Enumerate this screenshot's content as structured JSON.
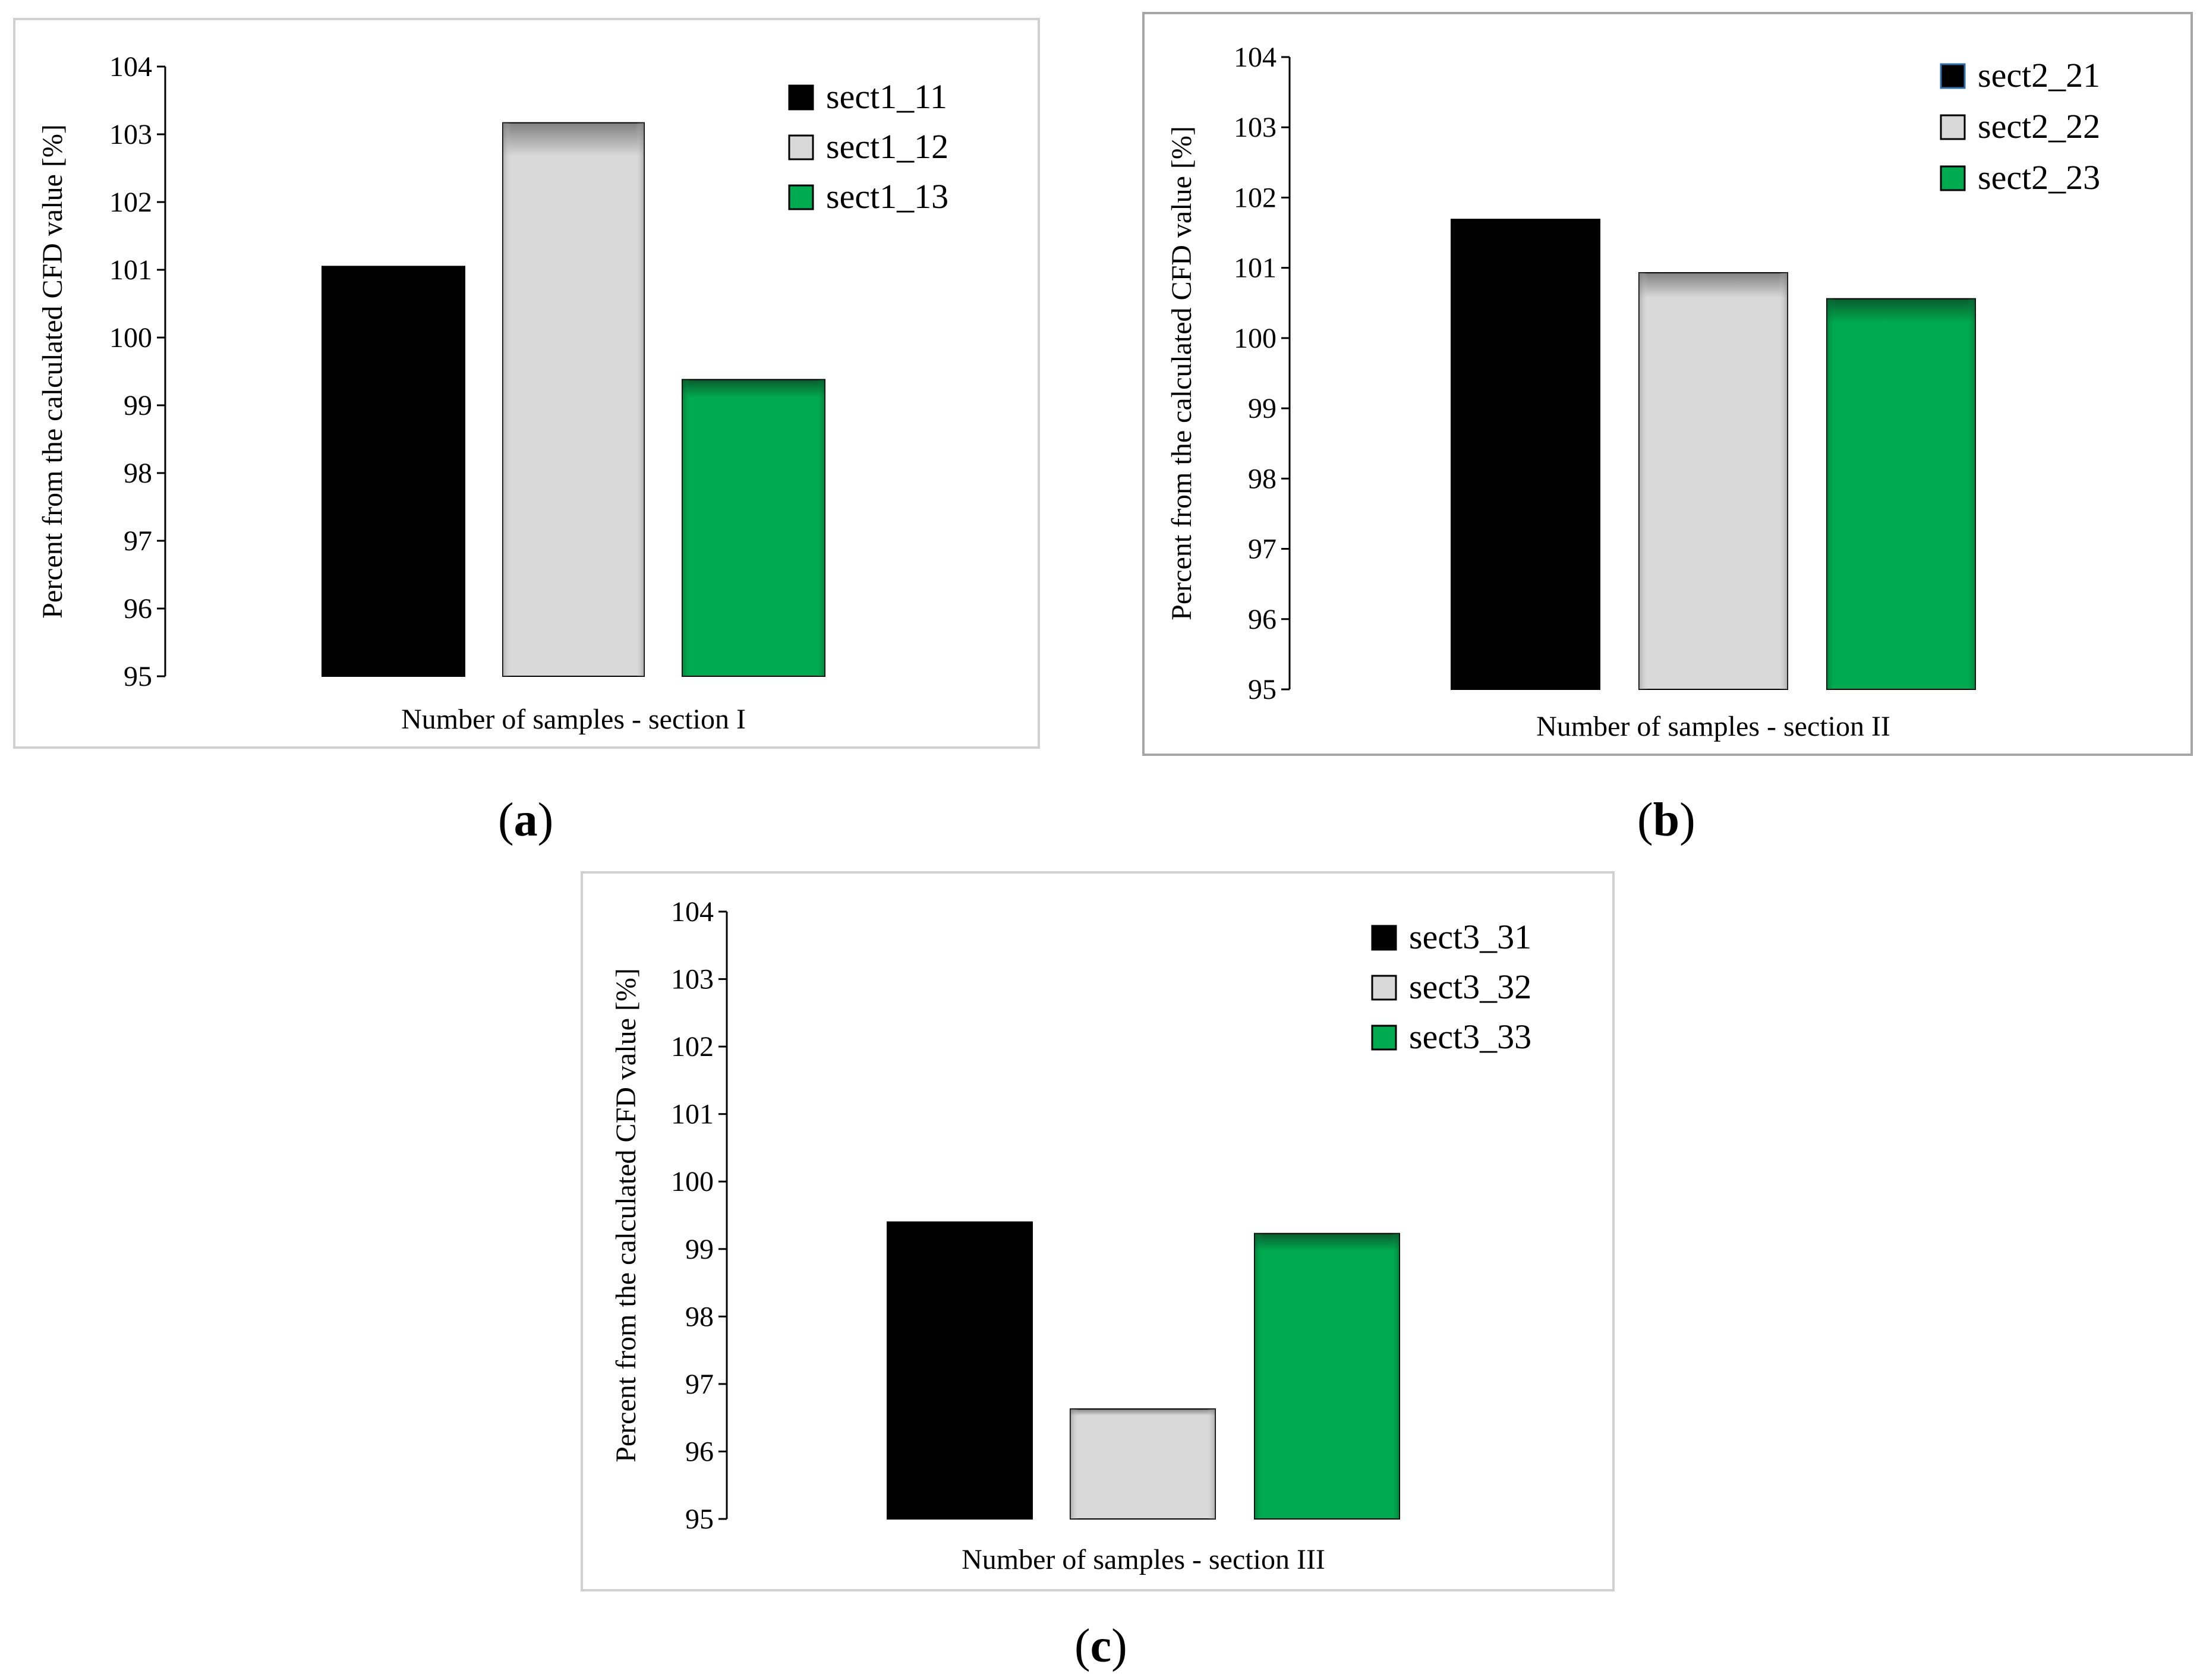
{
  "chart_data": [
    {
      "type": "bar",
      "panel": "a",
      "xlabel": "Number of  samples - section I",
      "ylabel": "Percent from the calculated CFD value [%]",
      "ylim": [
        95,
        104
      ],
      "yticks": [
        95,
        96,
        97,
        98,
        99,
        100,
        101,
        102,
        103,
        104
      ],
      "series": [
        {
          "name": "sect1_11",
          "value": 101.05,
          "color": "#000000"
        },
        {
          "name": "sect1_12",
          "value": 103.17,
          "color": "#d9d9d9"
        },
        {
          "name": "sect1_13",
          "value": 99.38,
          "color": "#00aa4f"
        }
      ]
    },
    {
      "type": "bar",
      "panel": "b",
      "xlabel": "Number of  samples - section II",
      "ylabel": "Percent from the calculated CFD value [%]",
      "ylim": [
        95,
        104
      ],
      "yticks": [
        95,
        96,
        97,
        98,
        99,
        100,
        101,
        102,
        103,
        104
      ],
      "series": [
        {
          "name": "sect2_21",
          "value": 101.69,
          "color": "#000000"
        },
        {
          "name": "sect2_22",
          "value": 100.93,
          "color": "#d9d9d9"
        },
        {
          "name": "sect2_23",
          "value": 100.56,
          "color": "#00aa4f"
        }
      ]
    },
    {
      "type": "bar",
      "panel": "c",
      "xlabel": "Number of  samples - section III",
      "ylabel": "Percent from the calculated CFD value [%]",
      "ylim": [
        95,
        104
      ],
      "yticks": [
        95,
        96,
        97,
        98,
        99,
        100,
        101,
        102,
        103,
        104
      ],
      "series": [
        {
          "name": "sect3_31",
          "value": 99.4,
          "color": "#000000"
        },
        {
          "name": "sect3_32",
          "value": 96.63,
          "color": "#d9d9d9"
        },
        {
          "name": "sect3_33",
          "value": 99.23,
          "color": "#00aa4f"
        }
      ]
    }
  ],
  "panel_labels": [
    "a",
    "b",
    "c"
  ],
  "colors": {
    "frame": "#d0d0d0",
    "frame_b": "#a6a6a6"
  }
}
